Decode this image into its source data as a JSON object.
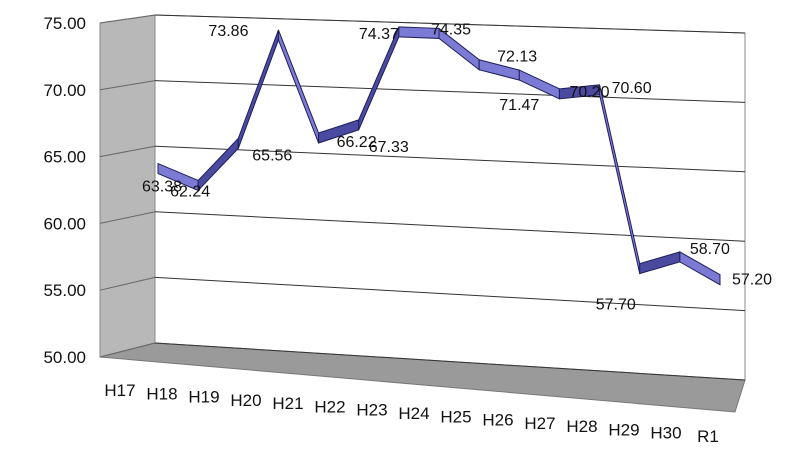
{
  "chart_data": {
    "type": "line",
    "title": "",
    "xlabel": "",
    "ylabel": "",
    "ylim": [
      50,
      75
    ],
    "y_ticks": [
      "50.00",
      "55.00",
      "60.00",
      "65.00",
      "70.00",
      "75.00"
    ],
    "categories": [
      "H17",
      "H18",
      "H19",
      "H20",
      "H21",
      "H22",
      "H23",
      "H24",
      "H25",
      "H26",
      "H27",
      "H28",
      "H29",
      "H30",
      "R1"
    ],
    "series": [
      {
        "values": [
          63.38,
          62.24,
          65.56,
          73.86,
          66.22,
          67.33,
          74.37,
          74.35,
          72.13,
          71.47,
          70.2,
          70.6,
          57.7,
          58.7,
          57.2
        ],
        "labels": [
          "63.38",
          "62.24",
          "65.56",
          "73.86",
          "66.22",
          "67.33",
          "74.37",
          "74.35",
          "72.13",
          "71.47",
          "70.20",
          "70.60",
          "57.70",
          "58.70",
          "57.20"
        ],
        "color": "#7b7bd6"
      }
    ],
    "grid": true,
    "style": "3d-ribbon",
    "legend": "none"
  }
}
